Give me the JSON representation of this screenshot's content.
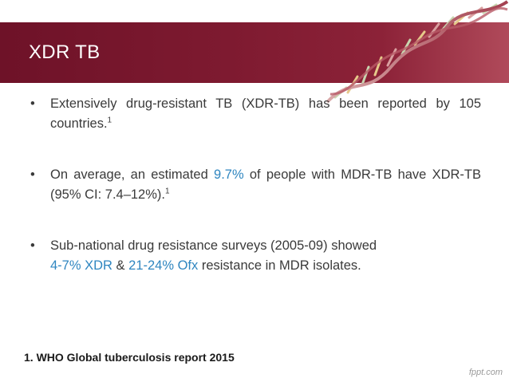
{
  "slide": {
    "title": "XDR TB",
    "bullets": [
      {
        "text": "Extensively drug-resistant TB (XDR-TB) has been reported by 105 countries.",
        "sup": "1"
      },
      {
        "pre": "On average, an estimated ",
        "highlight": "9.7%",
        "post": " of people with MDR-TB have XDR-TB (95% CI: 7.4–12%).",
        "sup": "1"
      },
      {
        "line1": "Sub-national drug resistance surveys (2005-09) showed",
        "hl1": "4-7% XDR",
        "mid": " & ",
        "hl2": "21-24% Ofx",
        "post": " resistance in MDR isolates."
      }
    ],
    "reference": "1. WHO Global tuberculosis report 2015",
    "watermark": "fppt.com"
  },
  "colors": {
    "banner": "#7e1a30",
    "highlight": "#2f86c0",
    "text": "#3a3a3a"
  }
}
